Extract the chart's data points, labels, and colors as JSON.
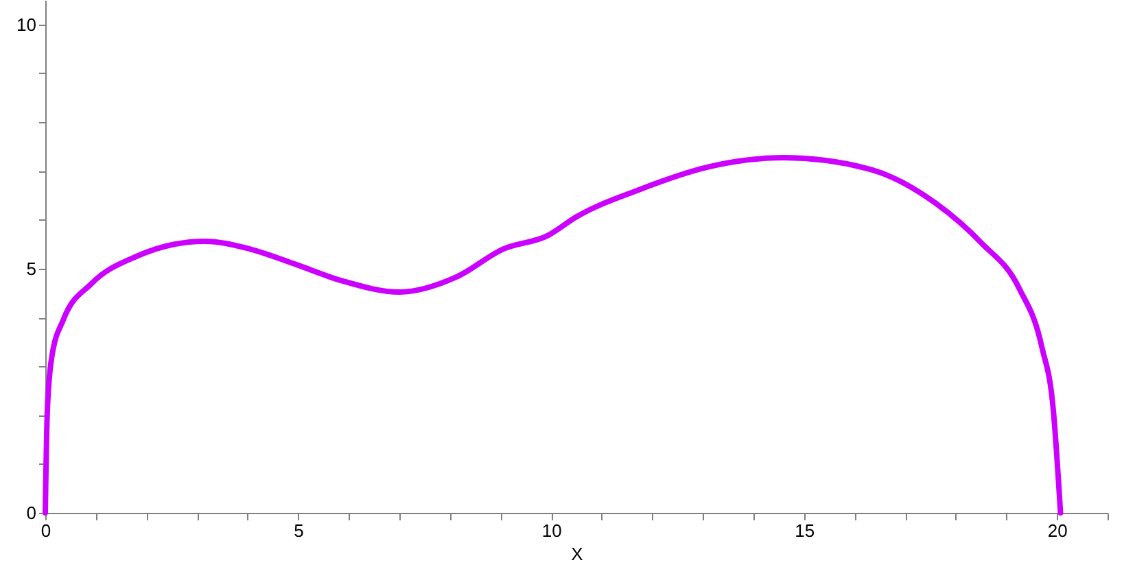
{
  "chart_data": {
    "type": "line",
    "xlabel": "X",
    "x": [
      0,
      0.04,
      0.13,
      0.36,
      0.91,
      1.8,
      3.15,
      4.05,
      4.97,
      5.87,
      7.0,
      8.13,
      9.05,
      9.94,
      10.5,
      11.75,
      13.1,
      14.6,
      16.25,
      17.6,
      18.5,
      19.25,
      19.7,
      19.93,
      20.07
    ],
    "series": [
      {
        "color": "#cc00ff",
        "values": [
          0,
          2.08,
          3.2,
          3.96,
          4.69,
          5.25,
          5.56,
          5.4,
          5.08,
          4.75,
          4.52,
          4.83,
          5.4,
          5.68,
          6.06,
          6.62,
          7.08,
          7.27,
          7.05,
          6.34,
          5.53,
          4.6,
          3.4,
          2.08,
          0
        ]
      }
    ],
    "xlim": [
      0,
      21
    ],
    "ylim": [
      0,
      10.5
    ],
    "xticks": [
      0,
      {
        "value": 1,
        "label": null
      },
      {
        "value": 2,
        "label": null
      },
      {
        "value": 3,
        "label": null
      },
      {
        "value": 4,
        "label": null
      },
      5,
      {
        "value": 6,
        "label": null
      },
      {
        "value": 7,
        "label": null
      },
      {
        "value": 8,
        "label": null
      },
      {
        "value": 9,
        "label": null
      },
      10,
      {
        "value": 11,
        "label": null
      },
      {
        "value": 12,
        "label": null
      },
      {
        "value": 13,
        "label": null
      },
      {
        "value": 14,
        "label": null
      },
      15,
      {
        "value": 16,
        "label": null
      },
      {
        "value": 17,
        "label": null
      },
      {
        "value": 18,
        "label": null
      },
      {
        "value": 19,
        "label": null
      },
      20,
      {
        "value": 21,
        "label": null
      }
    ],
    "yticks": [
      0,
      {
        "value": 1,
        "label": null
      },
      {
        "value": 2,
        "label": null
      },
      {
        "value": 3,
        "label": null
      },
      {
        "value": 4,
        "label": null
      },
      5,
      {
        "value": 6,
        "label": null
      },
      {
        "value": 7,
        "label": null
      },
      {
        "value": 8,
        "label": null
      },
      {
        "value": 9,
        "label": null
      },
      10
    ],
    "grid": false,
    "marker": "none",
    "line_style": "solid"
  }
}
